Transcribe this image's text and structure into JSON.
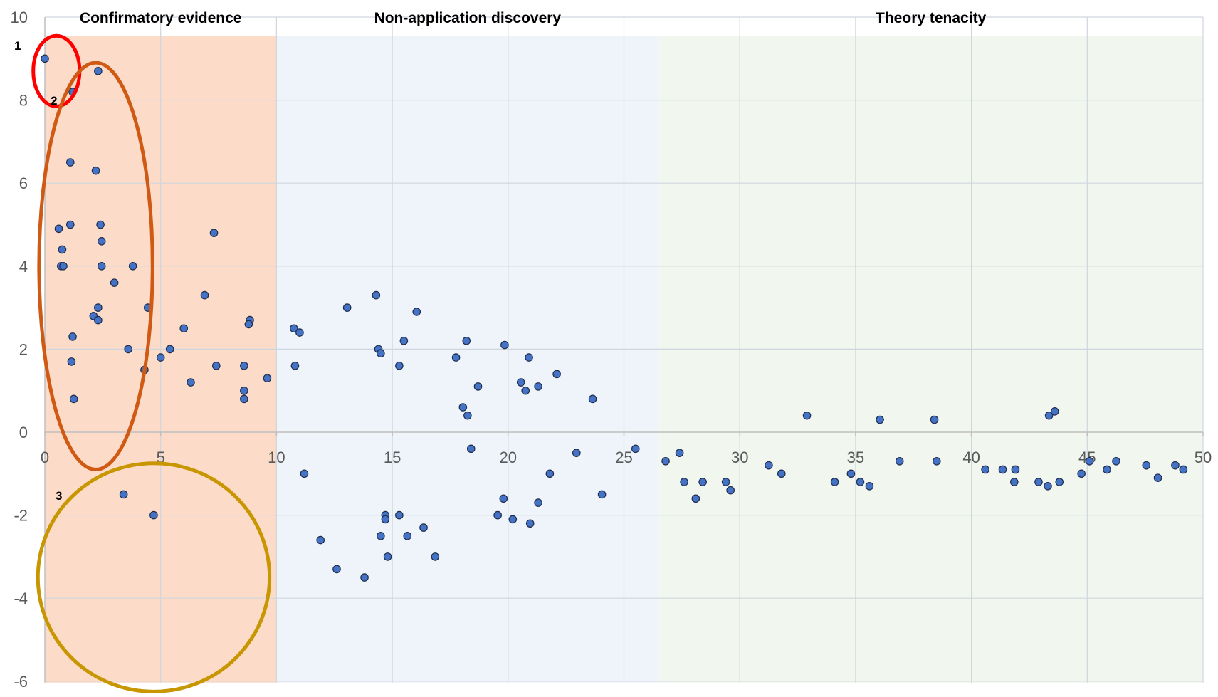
{
  "chart_data": {
    "type": "scatter",
    "title": "",
    "xlabel": "",
    "ylabel": "",
    "xlim": [
      0,
      50
    ],
    "ylim": [
      -6,
      10
    ],
    "x_ticks": [
      "0",
      "5",
      "10",
      "15",
      "20",
      "25",
      "30",
      "35",
      "40",
      "45",
      "50"
    ],
    "y_ticks": [
      "10",
      "8",
      "6",
      "4",
      "2",
      "0",
      "-2",
      "-4",
      "-6"
    ],
    "grid": true,
    "point_color": "#4472c4",
    "regions": [
      {
        "label": "Confirmatory evidence",
        "x_start": 0,
        "x_end": 10,
        "color": "#fcdbc8"
      },
      {
        "label": "Non-application discovery",
        "x_start": 10,
        "x_end": 26.5,
        "color": "#eef4fa"
      },
      {
        "label": "Theory tenacity",
        "x_start": 26.5,
        "x_end": 50,
        "color": "#f1f6ef"
      }
    ],
    "annotations": [
      {
        "label": "1",
        "shape": "circle",
        "color": "#ff0000",
        "cx": 0.5,
        "cy": 8.7,
        "rx": 1.0,
        "ry": 0.85
      },
      {
        "label": "2",
        "shape": "ellipse",
        "color": "#d05a14",
        "cx": 2.2,
        "cy": 4.0,
        "rx": 2.45,
        "ry": 4.9
      },
      {
        "label": "3",
        "shape": "circle",
        "color": "#c89600",
        "cx": 4.7,
        "cy": -3.5,
        "rx": 5.0,
        "ry": 2.75
      }
    ],
    "points": [
      {
        "x": 0.0,
        "y": 9.0
      },
      {
        "x": 2.3,
        "y": 8.7
      },
      {
        "x": 1.2,
        "y": 8.2
      },
      {
        "x": 1.1,
        "y": 6.5
      },
      {
        "x": 2.2,
        "y": 6.3
      },
      {
        "x": 0.6,
        "y": 4.9
      },
      {
        "x": 1.1,
        "y": 5.0
      },
      {
        "x": 2.4,
        "y": 5.0
      },
      {
        "x": 2.45,
        "y": 4.6
      },
      {
        "x": 0.75,
        "y": 4.4
      },
      {
        "x": 0.7,
        "y": 4.0
      },
      {
        "x": 0.8,
        "y": 4.0
      },
      {
        "x": 2.45,
        "y": 4.0
      },
      {
        "x": 3.8,
        "y": 4.0
      },
      {
        "x": 3.0,
        "y": 3.6
      },
      {
        "x": 7.3,
        "y": 4.8
      },
      {
        "x": 6.9,
        "y": 3.3
      },
      {
        "x": 2.3,
        "y": 3.0
      },
      {
        "x": 4.45,
        "y": 3.0
      },
      {
        "x": 2.1,
        "y": 2.8
      },
      {
        "x": 2.3,
        "y": 2.7
      },
      {
        "x": 6.0,
        "y": 2.5
      },
      {
        "x": 8.85,
        "y": 2.7
      },
      {
        "x": 8.8,
        "y": 2.6
      },
      {
        "x": 1.2,
        "y": 2.3
      },
      {
        "x": 3.6,
        "y": 2.0
      },
      {
        "x": 5.4,
        "y": 2.0
      },
      {
        "x": 1.15,
        "y": 1.7
      },
      {
        "x": 5.0,
        "y": 1.8
      },
      {
        "x": 4.3,
        "y": 1.5
      },
      {
        "x": 7.4,
        "y": 1.6
      },
      {
        "x": 8.6,
        "y": 1.6
      },
      {
        "x": 6.3,
        "y": 1.2
      },
      {
        "x": 9.6,
        "y": 1.3
      },
      {
        "x": 8.6,
        "y": 1.0
      },
      {
        "x": 1.25,
        "y": 0.8
      },
      {
        "x": 8.6,
        "y": 0.8
      },
      {
        "x": 3.4,
        "y": -1.5
      },
      {
        "x": 4.7,
        "y": -2.0
      },
      {
        "x": 10.75,
        "y": 2.5
      },
      {
        "x": 11.0,
        "y": 2.4
      },
      {
        "x": 10.8,
        "y": 1.6
      },
      {
        "x": 11.2,
        "y": -1.0
      },
      {
        "x": 11.9,
        "y": -2.6
      },
      {
        "x": 12.6,
        "y": -3.3
      },
      {
        "x": 13.05,
        "y": 3.0
      },
      {
        "x": 13.8,
        "y": -3.5
      },
      {
        "x": 14.3,
        "y": 3.3
      },
      {
        "x": 14.4,
        "y": 2.0
      },
      {
        "x": 14.5,
        "y": 1.9
      },
      {
        "x": 14.5,
        "y": -2.5
      },
      {
        "x": 14.7,
        "y": -2.0
      },
      {
        "x": 14.7,
        "y": -2.1
      },
      {
        "x": 14.8,
        "y": -3.0
      },
      {
        "x": 15.3,
        "y": 1.6
      },
      {
        "x": 15.3,
        "y": -2.0
      },
      {
        "x": 15.5,
        "y": 2.2
      },
      {
        "x": 15.65,
        "y": -2.5
      },
      {
        "x": 16.05,
        "y": 2.9
      },
      {
        "x": 16.35,
        "y": -2.3
      },
      {
        "x": 16.85,
        "y": -3.0
      },
      {
        "x": 17.75,
        "y": 1.8
      },
      {
        "x": 18.05,
        "y": 0.6
      },
      {
        "x": 18.2,
        "y": 2.2
      },
      {
        "x": 18.25,
        "y": 0.4
      },
      {
        "x": 18.4,
        "y": -0.4
      },
      {
        "x": 18.7,
        "y": 1.1
      },
      {
        "x": 19.55,
        "y": -2.0
      },
      {
        "x": 19.8,
        "y": -1.6
      },
      {
        "x": 19.85,
        "y": 2.1
      },
      {
        "x": 20.2,
        "y": -2.1
      },
      {
        "x": 20.55,
        "y": 1.2
      },
      {
        "x": 20.75,
        "y": 1.0
      },
      {
        "x": 20.9,
        "y": 1.8
      },
      {
        "x": 20.95,
        "y": -2.2
      },
      {
        "x": 21.3,
        "y": 1.1
      },
      {
        "x": 21.3,
        "y": -1.7
      },
      {
        "x": 21.8,
        "y": -1.0
      },
      {
        "x": 22.1,
        "y": 1.4
      },
      {
        "x": 22.95,
        "y": -0.5
      },
      {
        "x": 23.65,
        "y": 0.8
      },
      {
        "x": 24.05,
        "y": -1.5
      },
      {
        "x": 25.5,
        "y": -0.4
      },
      {
        "x": 26.8,
        "y": -0.7
      },
      {
        "x": 27.4,
        "y": -0.5
      },
      {
        "x": 27.6,
        "y": -1.2
      },
      {
        "x": 28.1,
        "y": -1.6
      },
      {
        "x": 28.4,
        "y": -1.2
      },
      {
        "x": 29.4,
        "y": -1.2
      },
      {
        "x": 29.6,
        "y": -1.4
      },
      {
        "x": 31.25,
        "y": -0.8
      },
      {
        "x": 31.8,
        "y": -1.0
      },
      {
        "x": 32.9,
        "y": 0.4
      },
      {
        "x": 34.1,
        "y": -1.2
      },
      {
        "x": 34.8,
        "y": -1.0
      },
      {
        "x": 35.2,
        "y": -1.2
      },
      {
        "x": 35.6,
        "y": -1.3
      },
      {
        "x": 36.05,
        "y": 0.3
      },
      {
        "x": 36.9,
        "y": -0.7
      },
      {
        "x": 38.4,
        "y": 0.3
      },
      {
        "x": 38.5,
        "y": -0.7
      },
      {
        "x": 40.6,
        "y": -0.9
      },
      {
        "x": 41.35,
        "y": -0.9
      },
      {
        "x": 41.85,
        "y": -1.2
      },
      {
        "x": 41.9,
        "y": -0.9
      },
      {
        "x": 42.9,
        "y": -1.2
      },
      {
        "x": 43.3,
        "y": -1.3
      },
      {
        "x": 43.35,
        "y": 0.4
      },
      {
        "x": 43.6,
        "y": 0.5
      },
      {
        "x": 43.8,
        "y": -1.2
      },
      {
        "x": 44.75,
        "y": -1.0
      },
      {
        "x": 45.1,
        "y": -0.7
      },
      {
        "x": 45.85,
        "y": -0.9
      },
      {
        "x": 46.25,
        "y": -0.7
      },
      {
        "x": 47.55,
        "y": -0.8
      },
      {
        "x": 48.05,
        "y": -1.1
      },
      {
        "x": 48.8,
        "y": -0.8
      },
      {
        "x": 49.15,
        "y": -0.9
      }
    ]
  }
}
